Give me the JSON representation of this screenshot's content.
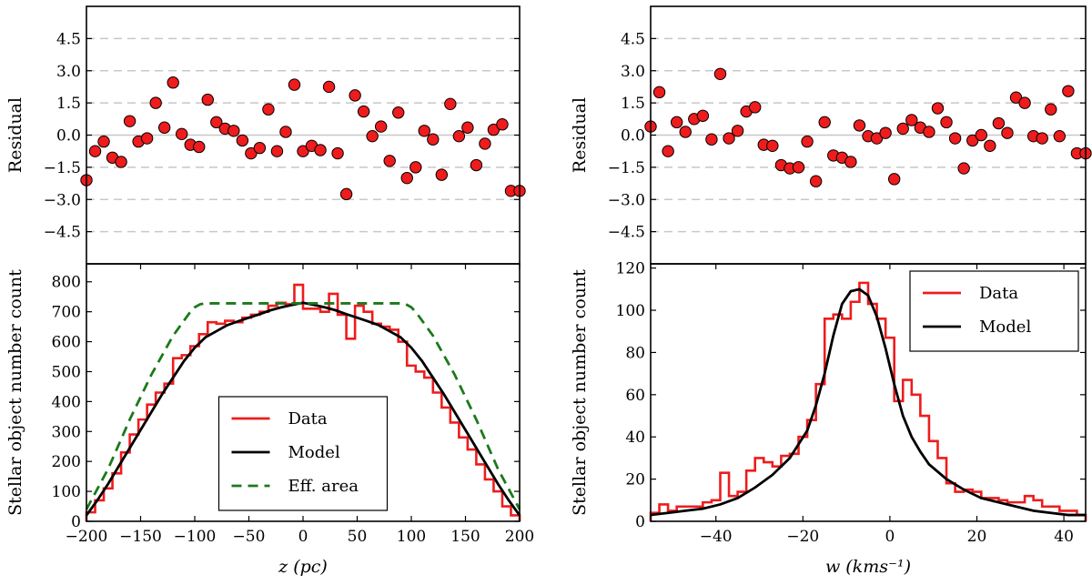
{
  "chart_data": [
    {
      "id": "left_residual",
      "type": "scatter",
      "title": "",
      "xlabel": "",
      "ylabel": "Residual",
      "xlim": [
        -200,
        200
      ],
      "ylim": [
        -6,
        6
      ],
      "yticks": [
        "-4.5",
        "-3.0",
        "-1.5",
        "0.0",
        "1.5",
        "3.0",
        "4.5"
      ],
      "gridlines_y": [
        -4.5,
        -3.0,
        -1.5,
        0.0,
        1.5,
        3.0,
        4.5
      ],
      "points_color": "#ee1c1c",
      "x": [
        -200,
        -192,
        -184,
        -176,
        -168,
        -160,
        -152,
        -144,
        -136,
        -128,
        -120,
        -112,
        -104,
        -96,
        -88,
        -80,
        -72,
        -64,
        -56,
        -48,
        -40,
        -32,
        -24,
        -16,
        -8,
        0,
        8,
        16,
        24,
        32,
        40,
        48,
        56,
        64,
        72,
        80,
        88,
        96,
        104,
        112,
        120,
        128,
        136,
        144,
        152,
        160,
        168,
        176,
        184,
        192,
        200
      ],
      "values": [
        -2.1,
        -0.75,
        -0.3,
        -1.05,
        -1.25,
        0.65,
        -0.3,
        -0.15,
        1.5,
        0.35,
        2.45,
        0.05,
        -0.45,
        -0.55,
        1.65,
        0.6,
        0.3,
        0.2,
        -0.25,
        -0.85,
        -0.6,
        1.2,
        -0.75,
        0.15,
        2.35,
        -0.75,
        -0.5,
        -0.7,
        2.25,
        -0.85,
        -2.75,
        1.85,
        1.1,
        -0.05,
        0.4,
        -1.2,
        1.05,
        -2.0,
        -1.5,
        0.2,
        -0.2,
        -1.85,
        1.45,
        -0.05,
        0.35,
        -1.4,
        -0.4,
        0.25,
        0.5,
        -2.6,
        -2.6
      ]
    },
    {
      "id": "left_counts",
      "type": "line",
      "title": "",
      "xlabel": "z  (pc)",
      "ylabel": "Stellar object number count",
      "xlim": [
        -200,
        200
      ],
      "ylim": [
        0,
        860
      ],
      "xticks": [
        -200,
        -150,
        -100,
        -50,
        0,
        50,
        100,
        150,
        200
      ],
      "xtick_labels": [
        "−200",
        "−150",
        "−100",
        "−50",
        "0",
        "50",
        "100",
        "150",
        "200"
      ],
      "yticks": [
        0,
        100,
        200,
        300,
        400,
        500,
        600,
        700,
        800
      ],
      "legend_position": "lower-center",
      "series": [
        {
          "name": "Data",
          "kind": "step",
          "color": "#ee1c1c",
          "edges": [
            -200,
            -192,
            -184,
            -176,
            -168,
            -160,
            -152,
            -144,
            -136,
            -128,
            -120,
            -112,
            -104,
            -96,
            -88,
            -80,
            -72,
            -64,
            -56,
            -48,
            -40,
            -32,
            -24,
            -16,
            -8,
            0,
            8,
            16,
            24,
            32,
            40,
            48,
            56,
            64,
            72,
            80,
            88,
            96,
            104,
            112,
            120,
            128,
            136,
            144,
            152,
            160,
            168,
            176,
            184,
            192,
            200
          ],
          "values": [
            30,
            70,
            110,
            160,
            230,
            290,
            340,
            390,
            430,
            460,
            545,
            555,
            585,
            625,
            665,
            660,
            670,
            665,
            680,
            690,
            700,
            720,
            730,
            725,
            790,
            710,
            710,
            700,
            760,
            690,
            610,
            720,
            700,
            660,
            650,
            640,
            600,
            520,
            500,
            480,
            430,
            380,
            330,
            280,
            240,
            190,
            140,
            100,
            50,
            20
          ]
        },
        {
          "name": "Model",
          "kind": "line",
          "color": "#000000",
          "x": [
            -200,
            -190,
            -180,
            -170,
            -160,
            -150,
            -140,
            -130,
            -120,
            -110,
            -100,
            -90,
            -80,
            -70,
            -60,
            -50,
            -40,
            -30,
            -20,
            -10,
            0,
            10,
            20,
            30,
            40,
            50,
            60,
            70,
            80,
            90,
            100,
            110,
            120,
            130,
            140,
            150,
            160,
            170,
            180,
            190,
            200
          ],
          "values": [
            20,
            70,
            125,
            185,
            245,
            305,
            365,
            425,
            480,
            535,
            580,
            615,
            635,
            655,
            668,
            680,
            692,
            705,
            715,
            723,
            730,
            723,
            715,
            705,
            692,
            680,
            668,
            655,
            635,
            615,
            580,
            535,
            480,
            425,
            365,
            305,
            245,
            185,
            125,
            70,
            20
          ]
        },
        {
          "name": "Eff. area",
          "kind": "dashed",
          "color": "#1a7a1a",
          "x": [
            -200,
            -180,
            -160,
            -140,
            -120,
            -105,
            -100,
            -95,
            -90,
            0,
            90,
            95,
            100,
            105,
            120,
            140,
            160,
            180,
            200
          ],
          "values": [
            40,
            175,
            340,
            490,
            620,
            695,
            715,
            725,
            728,
            728,
            728,
            725,
            715,
            695,
            620,
            490,
            340,
            175,
            40
          ]
        }
      ]
    },
    {
      "id": "right_residual",
      "type": "scatter",
      "title": "",
      "xlabel": "",
      "ylabel": "Residual",
      "xlim": [
        -55,
        45
      ],
      "ylim": [
        -6,
        6
      ],
      "yticks": [
        "-4.5",
        "-3.0",
        "-1.5",
        "0.0",
        "1.5",
        "3.0",
        "4.5"
      ],
      "gridlines_y": [
        -4.5,
        -3.0,
        -1.5,
        0.0,
        1.5,
        3.0,
        4.5
      ],
      "points_color": "#ee1c1c",
      "x": [
        -55,
        -53,
        -51,
        -49,
        -47,
        -45,
        -43,
        -41,
        -39,
        -37,
        -35,
        -33,
        -31,
        -29,
        -27,
        -25,
        -23,
        -21,
        -19,
        -17,
        -15,
        -13,
        -11,
        -9,
        -7,
        -5,
        -3,
        -1,
        1,
        3,
        5,
        7,
        9,
        11,
        13,
        15,
        17,
        19,
        21,
        23,
        25,
        27,
        29,
        31,
        33,
        35,
        37,
        39,
        41,
        43,
        45
      ],
      "values": [
        0.4,
        2.0,
        -0.75,
        0.6,
        0.15,
        0.75,
        0.9,
        -0.2,
        2.85,
        -0.15,
        0.2,
        1.1,
        1.3,
        -0.45,
        -0.5,
        -1.4,
        -1.55,
        -1.5,
        -0.3,
        -2.15,
        0.6,
        -0.95,
        -1.05,
        -1.25,
        0.45,
        -0.05,
        -0.15,
        0.1,
        -2.05,
        0.3,
        0.7,
        0.35,
        0.15,
        1.25,
        0.6,
        -0.15,
        -1.55,
        -0.25,
        0.0,
        -0.5,
        0.55,
        0.1,
        1.75,
        1.5,
        -0.05,
        -0.15,
        1.2,
        -0.05,
        2.05,
        -0.85,
        -0.85
      ]
    },
    {
      "id": "right_counts",
      "type": "line",
      "title": "",
      "xlabel": "w  (kms⁻¹)",
      "ylabel": "Stellar object number count",
      "xlim": [
        -55,
        45
      ],
      "ylim": [
        0,
        122
      ],
      "xticks": [
        -40,
        -20,
        0,
        20,
        40
      ],
      "xtick_labels": [
        "−40",
        "−20",
        "0",
        "20",
        "40"
      ],
      "yticks": [
        0,
        20,
        40,
        60,
        80,
        100,
        120
      ],
      "legend_position": "upper-right",
      "series": [
        {
          "name": "Data",
          "kind": "step",
          "color": "#ee1c1c",
          "edges": [
            -55,
            -53,
            -51,
            -49,
            -47,
            -45,
            -43,
            -41,
            -39,
            -37,
            -35,
            -33,
            -31,
            -29,
            -27,
            -25,
            -23,
            -21,
            -19,
            -17,
            -15,
            -13,
            -11,
            -9,
            -7,
            -5,
            -3,
            -1,
            1,
            3,
            5,
            7,
            9,
            11,
            13,
            15,
            17,
            19,
            21,
            23,
            25,
            27,
            29,
            31,
            33,
            35,
            37,
            39,
            41,
            43,
            45
          ],
          "values": [
            4,
            8,
            5,
            7,
            7,
            7,
            9,
            10,
            23,
            12,
            14,
            24,
            30,
            28,
            26,
            31,
            32,
            40,
            48,
            65,
            96,
            98,
            96,
            104,
            113,
            103,
            96,
            87,
            57,
            67,
            60,
            50,
            38,
            30,
            18,
            14,
            15,
            14,
            11,
            11,
            10,
            9,
            9,
            12,
            10,
            7,
            7,
            5,
            5,
            3
          ]
        },
        {
          "name": "Model",
          "kind": "line",
          "color": "#000000",
          "x": [
            -55,
            -51,
            -47,
            -43,
            -39,
            -35,
            -31,
            -27,
            -23,
            -19,
            -17,
            -15,
            -13,
            -11,
            -9,
            -7,
            -5,
            -3,
            -1,
            1,
            3,
            5,
            7,
            9,
            13,
            17,
            21,
            25,
            29,
            33,
            37,
            41,
            45
          ],
          "values": [
            3,
            4,
            5,
            6,
            8,
            11,
            16,
            22,
            30,
            43,
            55,
            70,
            88,
            103,
            109,
            110,
            107,
            97,
            82,
            65,
            50,
            40,
            33,
            27,
            20,
            15,
            11,
            9,
            7,
            5,
            4,
            3,
            3
          ]
        }
      ]
    }
  ]
}
